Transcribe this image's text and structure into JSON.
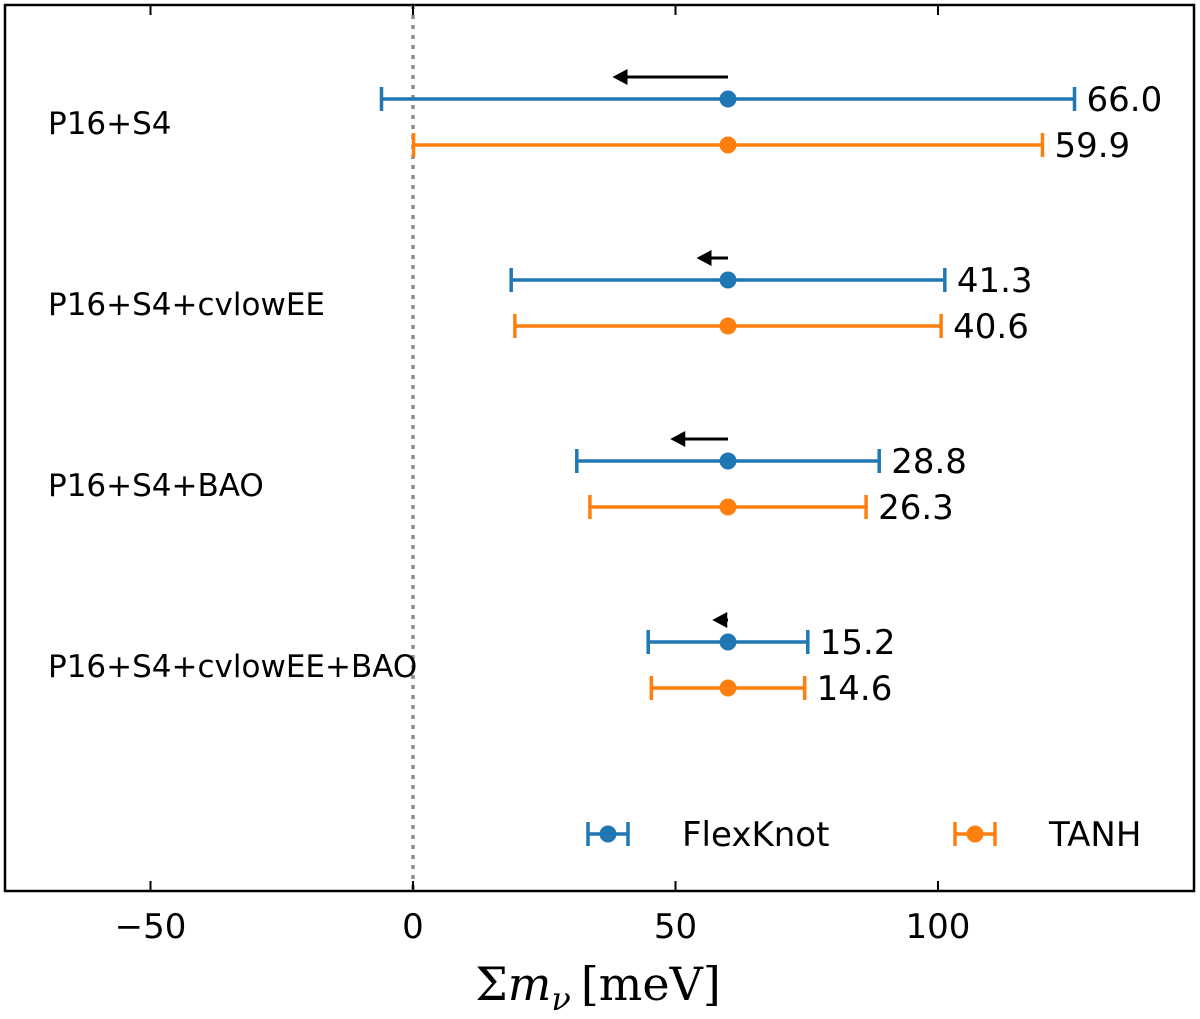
{
  "chart_data": {
    "type": "errorbar",
    "xlabel": "Σm_ν [meV]",
    "xlabel_parts": {
      "sum": "Σ",
      "m": "m",
      "sub": "ν",
      "unit": "[meV]"
    },
    "xlim": [
      -75,
      145
    ],
    "xticks": [
      -50,
      0,
      50,
      100
    ],
    "xtick_labels": [
      "−50",
      "0",
      "50",
      "100"
    ],
    "reference_line": {
      "x": 0,
      "style": "dotted",
      "color": "#8c8c8c"
    },
    "colors": {
      "FlexKnot": "#1f77b4",
      "TANH": "#ff7f0e",
      "arrow": "#000000"
    },
    "legend": {
      "location": "lower-right",
      "entries": [
        "FlexKnot",
        "TANH"
      ]
    },
    "groups": [
      {
        "label": "P16+S4",
        "FlexKnot": {
          "center": 60,
          "low": -6,
          "high": 126,
          "width_label": "66.0"
        },
        "TANH": {
          "center": 60,
          "low": 0.1,
          "high": 119.9,
          "width_label": "59.9"
        },
        "arrow": {
          "from": 60,
          "to": 38
        }
      },
      {
        "label": "P16+S4+cvlowEE",
        "FlexKnot": {
          "center": 60,
          "low": 18.7,
          "high": 101.3,
          "width_label": "41.3"
        },
        "TANH": {
          "center": 60,
          "low": 19.4,
          "high": 100.6,
          "width_label": "40.6"
        },
        "arrow": {
          "from": 60,
          "to": 54
        }
      },
      {
        "label": "P16+S4+BAO",
        "FlexKnot": {
          "center": 60,
          "low": 31.2,
          "high": 88.8,
          "width_label": "28.8"
        },
        "TANH": {
          "center": 60,
          "low": 33.7,
          "high": 86.3,
          "width_label": "26.3"
        },
        "arrow": {
          "from": 60,
          "to": 49
        }
      },
      {
        "label": "P16+S4+cvlowEE+BAO",
        "FlexKnot": {
          "center": 60,
          "low": 44.8,
          "high": 75.2,
          "width_label": "15.2"
        },
        "TANH": {
          "center": 60,
          "low": 45.4,
          "high": 74.6,
          "width_label": "14.6"
        },
        "arrow": {
          "from": 60,
          "to": 57
        }
      }
    ]
  }
}
